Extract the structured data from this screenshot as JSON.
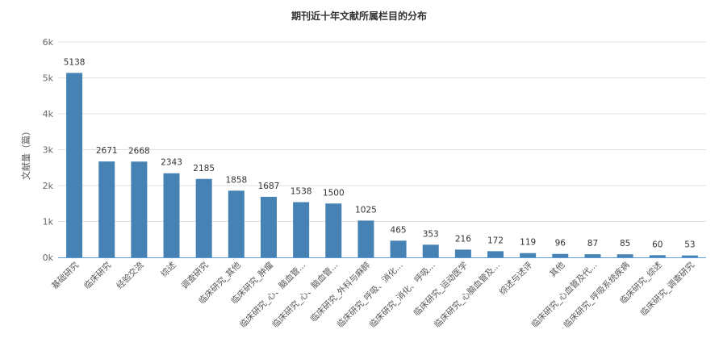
{
  "chart_data": {
    "type": "bar",
    "title": "期刊近十年文献所属栏目的分布",
    "ylabel": "文献量（篇）",
    "xlabel": "",
    "ylim": [
      0,
      6000
    ],
    "yticks": [
      0,
      1000,
      2000,
      3000,
      4000,
      5000,
      6000
    ],
    "ytick_labels": [
      "0k",
      "1k",
      "2k",
      "3k",
      "4k",
      "5k",
      "6k"
    ],
    "grid": true,
    "bar_color": "#4682b4",
    "categories": [
      "基础研究",
      "临床研究",
      "经验交流",
      "综述",
      "调查研究",
      "临床研究_其他",
      "临床研究_肿瘤",
      "临床研究_心、脑血管...",
      "临床研究_心、脑血管...",
      "临床研究_外科与麻醉",
      "临床研究_呼吸、消化...",
      "临床研究_消化、呼吸...",
      "临床研究_运动医学",
      "临床研究_心脑血管及...",
      "综述与述评",
      "其他",
      "临床研究_心血管及代...",
      "临床研究_呼吸系统疾病",
      "临床研究_综述",
      "临床研究_调查研究"
    ],
    "values": [
      5138,
      2671,
      2668,
      2343,
      2185,
      1858,
      1687,
      1538,
      1500,
      1025,
      465,
      353,
      216,
      172,
      119,
      96,
      87,
      85,
      60,
      53
    ]
  }
}
